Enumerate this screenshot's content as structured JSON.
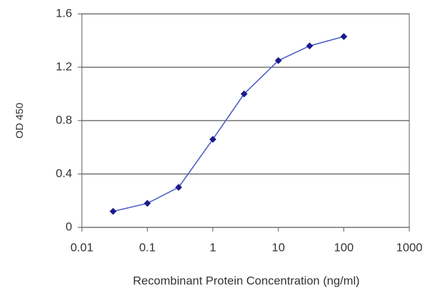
{
  "chart_data": {
    "type": "line",
    "xlabel": "Recombinant Protein Concentration (ng/ml)",
    "ylabel": "OD 450",
    "xscale": "log",
    "x": [
      0.03,
      0.1,
      0.3,
      1,
      3,
      10,
      30,
      100
    ],
    "values": [
      0.12,
      0.18,
      0.3,
      0.66,
      1.0,
      1.25,
      1.36,
      1.43
    ],
    "color": "#1a1a8c",
    "line_color": "#4a5cc8",
    "xlim": [
      0.01,
      1000
    ],
    "xticks": [
      0.01,
      0.1,
      1,
      10,
      100,
      1000
    ],
    "ylim": [
      0,
      1.6
    ],
    "yticks": [
      0,
      0.4,
      0.8,
      1.2,
      1.6
    ],
    "grid": true
  }
}
